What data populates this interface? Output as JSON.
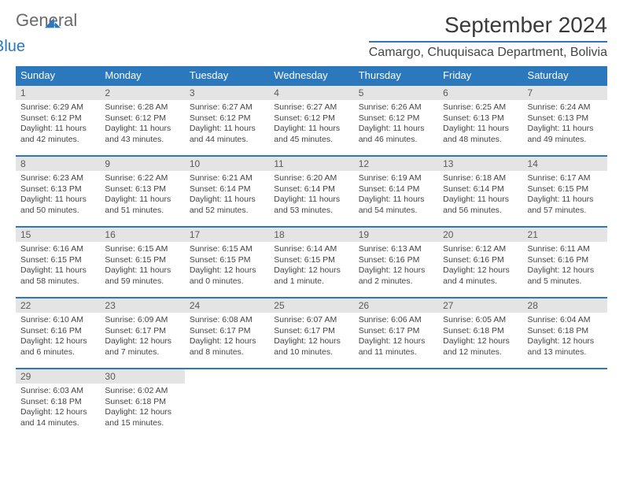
{
  "logo": {
    "text1": "General",
    "text2": "Blue"
  },
  "title": "September 2024",
  "location": "Camargo, Chuquisaca Department, Bolivia",
  "header_bg": "#2b78bd",
  "dow": [
    "Sunday",
    "Monday",
    "Tuesday",
    "Wednesday",
    "Thursday",
    "Friday",
    "Saturday"
  ],
  "days": [
    {
      "n": "1",
      "sr": "6:29 AM",
      "ss": "6:12 PM",
      "dl": "11 hours and 42 minutes."
    },
    {
      "n": "2",
      "sr": "6:28 AM",
      "ss": "6:12 PM",
      "dl": "11 hours and 43 minutes."
    },
    {
      "n": "3",
      "sr": "6:27 AM",
      "ss": "6:12 PM",
      "dl": "11 hours and 44 minutes."
    },
    {
      "n": "4",
      "sr": "6:27 AM",
      "ss": "6:12 PM",
      "dl": "11 hours and 45 minutes."
    },
    {
      "n": "5",
      "sr": "6:26 AM",
      "ss": "6:12 PM",
      "dl": "11 hours and 46 minutes."
    },
    {
      "n": "6",
      "sr": "6:25 AM",
      "ss": "6:13 PM",
      "dl": "11 hours and 48 minutes."
    },
    {
      "n": "7",
      "sr": "6:24 AM",
      "ss": "6:13 PM",
      "dl": "11 hours and 49 minutes."
    },
    {
      "n": "8",
      "sr": "6:23 AM",
      "ss": "6:13 PM",
      "dl": "11 hours and 50 minutes."
    },
    {
      "n": "9",
      "sr": "6:22 AM",
      "ss": "6:13 PM",
      "dl": "11 hours and 51 minutes."
    },
    {
      "n": "10",
      "sr": "6:21 AM",
      "ss": "6:14 PM",
      "dl": "11 hours and 52 minutes."
    },
    {
      "n": "11",
      "sr": "6:20 AM",
      "ss": "6:14 PM",
      "dl": "11 hours and 53 minutes."
    },
    {
      "n": "12",
      "sr": "6:19 AM",
      "ss": "6:14 PM",
      "dl": "11 hours and 54 minutes."
    },
    {
      "n": "13",
      "sr": "6:18 AM",
      "ss": "6:14 PM",
      "dl": "11 hours and 56 minutes."
    },
    {
      "n": "14",
      "sr": "6:17 AM",
      "ss": "6:15 PM",
      "dl": "11 hours and 57 minutes."
    },
    {
      "n": "15",
      "sr": "6:16 AM",
      "ss": "6:15 PM",
      "dl": "11 hours and 58 minutes."
    },
    {
      "n": "16",
      "sr": "6:15 AM",
      "ss": "6:15 PM",
      "dl": "11 hours and 59 minutes."
    },
    {
      "n": "17",
      "sr": "6:15 AM",
      "ss": "6:15 PM",
      "dl": "12 hours and 0 minutes."
    },
    {
      "n": "18",
      "sr": "6:14 AM",
      "ss": "6:15 PM",
      "dl": "12 hours and 1 minute."
    },
    {
      "n": "19",
      "sr": "6:13 AM",
      "ss": "6:16 PM",
      "dl": "12 hours and 2 minutes."
    },
    {
      "n": "20",
      "sr": "6:12 AM",
      "ss": "6:16 PM",
      "dl": "12 hours and 4 minutes."
    },
    {
      "n": "21",
      "sr": "6:11 AM",
      "ss": "6:16 PM",
      "dl": "12 hours and 5 minutes."
    },
    {
      "n": "22",
      "sr": "6:10 AM",
      "ss": "6:16 PM",
      "dl": "12 hours and 6 minutes."
    },
    {
      "n": "23",
      "sr": "6:09 AM",
      "ss": "6:17 PM",
      "dl": "12 hours and 7 minutes."
    },
    {
      "n": "24",
      "sr": "6:08 AM",
      "ss": "6:17 PM",
      "dl": "12 hours and 8 minutes."
    },
    {
      "n": "25",
      "sr": "6:07 AM",
      "ss": "6:17 PM",
      "dl": "12 hours and 10 minutes."
    },
    {
      "n": "26",
      "sr": "6:06 AM",
      "ss": "6:17 PM",
      "dl": "12 hours and 11 minutes."
    },
    {
      "n": "27",
      "sr": "6:05 AM",
      "ss": "6:18 PM",
      "dl": "12 hours and 12 minutes."
    },
    {
      "n": "28",
      "sr": "6:04 AM",
      "ss": "6:18 PM",
      "dl": "12 hours and 13 minutes."
    },
    {
      "n": "29",
      "sr": "6:03 AM",
      "ss": "6:18 PM",
      "dl": "12 hours and 14 minutes."
    },
    {
      "n": "30",
      "sr": "6:02 AM",
      "ss": "6:18 PM",
      "dl": "12 hours and 15 minutes."
    }
  ],
  "labels": {
    "sunrise": "Sunrise:",
    "sunset": "Sunset:",
    "daylight": "Daylight:"
  }
}
